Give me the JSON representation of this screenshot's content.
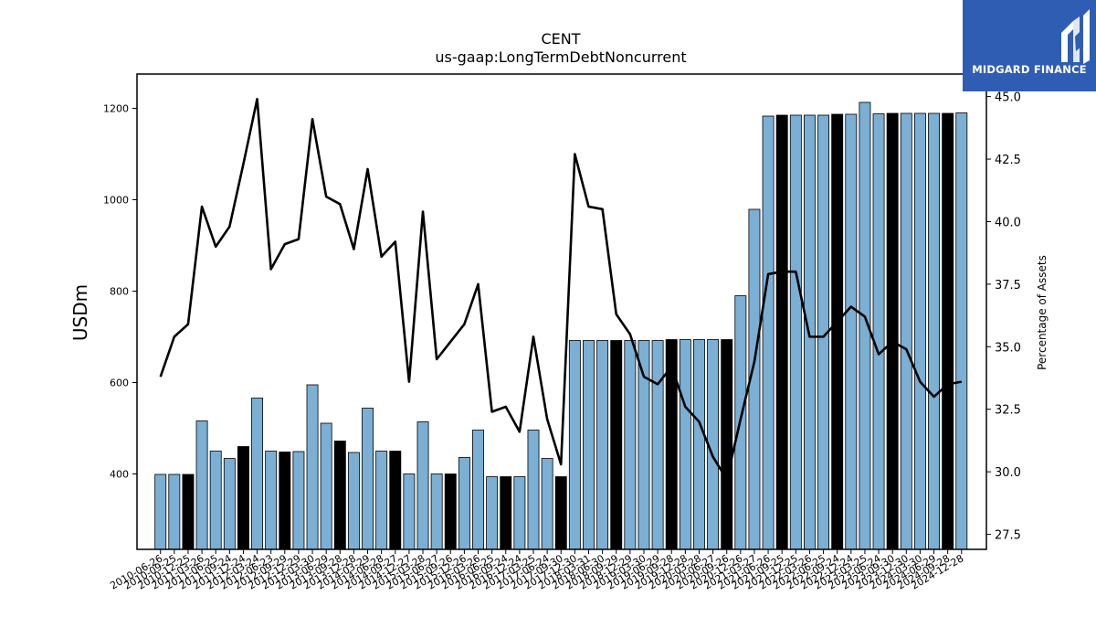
{
  "chart_data": {
    "type": "bar",
    "title": "CENT",
    "subtitle": "us-gaap:LongTermDebtNoncurrent",
    "ylabel": "USDm",
    "y2label": "Percentage of Assets",
    "ylim": [
      235,
      1275
    ],
    "y2lim": [
      26.9,
      45.9
    ],
    "yticks": [
      400,
      600,
      800,
      1000,
      1200
    ],
    "y2ticks": [
      "27.5",
      "30.0",
      "32.5",
      "35.0",
      "37.5",
      "40.0",
      "42.5",
      "45.0"
    ],
    "colors": {
      "quarter_bar": "#7bafd4",
      "annual_bar": "#000000",
      "bar_edge": "#000000",
      "line": "#000000"
    },
    "categories": [
      "2010-06-26",
      "2010-09-25",
      "2010-12-25",
      "2011-03-26",
      "2011-06-25",
      "2011-09-24",
      "2011-12-24",
      "2012-03-24",
      "2012-06-23",
      "2012-09-29",
      "2012-12-29",
      "2013-03-30",
      "2013-06-29",
      "2013-09-28",
      "2013-12-28",
      "2014-03-29",
      "2014-06-28",
      "2014-09-27",
      "2014-12-27",
      "2015-03-28",
      "2015-06-27",
      "2015-09-26",
      "2015-12-26",
      "2016-03-26",
      "2016-06-25",
      "2016-09-24",
      "2016-12-24",
      "2017-03-25",
      "2017-06-24",
      "2017-09-30",
      "2017-12-30",
      "2018-03-31",
      "2018-06-30",
      "2018-09-29",
      "2018-12-29",
      "2019-03-30",
      "2019-06-29",
      "2019-09-28",
      "2019-12-28",
      "2020-03-28",
      "2020-06-27",
      "2020-09-26",
      "2020-12-26",
      "2021-03-27",
      "2021-06-26",
      "2021-09-25",
      "2021-12-25",
      "2022-03-26",
      "2022-06-25",
      "2022-09-24",
      "2022-12-24",
      "2023-03-25",
      "2023-06-24",
      "2023-09-30",
      "2023-12-30",
      "2024-03-30",
      "2024-06-29",
      "2024-09-28",
      "2024-12-28"
    ],
    "series": [
      {
        "values": [
          399,
          399,
          399,
          516,
          450,
          434,
          460,
          566,
          450,
          448,
          449,
          595,
          511,
          472,
          447,
          544,
          450,
          450,
          400,
          514,
          400,
          400,
          436,
          496,
          394,
          394,
          394,
          496,
          434,
          394,
          692,
          692,
          692,
          692,
          692,
          692,
          692,
          694,
          694,
          694,
          694,
          694,
          790,
          979,
          1183,
          1185,
          1185,
          1185,
          1185,
          1187,
          1187,
          1213,
          1188,
          1189,
          1189,
          1189,
          1189,
          1189,
          1190
        ],
        "annual": [
          false,
          false,
          true,
          false,
          false,
          false,
          true,
          false,
          false,
          true,
          false,
          false,
          false,
          true,
          false,
          false,
          false,
          true,
          false,
          false,
          false,
          true,
          false,
          false,
          false,
          true,
          false,
          false,
          false,
          true,
          false,
          false,
          false,
          true,
          false,
          false,
          false,
          true,
          false,
          false,
          false,
          true,
          false,
          false,
          false,
          true,
          false,
          false,
          false,
          true,
          false,
          false,
          false,
          true,
          false,
          false,
          false,
          true,
          false
        ]
      },
      {
        "axis": "right",
        "values": [
          33.8,
          35.4,
          35.9,
          40.6,
          39.0,
          39.8,
          42.3,
          44.9,
          38.1,
          39.1,
          39.3,
          44.1,
          41.0,
          40.7,
          38.9,
          42.1,
          38.6,
          39.2,
          33.6,
          40.4,
          34.5,
          35.2,
          35.9,
          37.5,
          32.4,
          32.6,
          31.6,
          35.4,
          32.1,
          30.3,
          42.7,
          40.6,
          40.5,
          36.3,
          35.5,
          33.8,
          33.5,
          34.2,
          32.6,
          32.0,
          30.6,
          29.7,
          32.1,
          34.4,
          37.9,
          38.0,
          38.0,
          35.4,
          35.4,
          36.0,
          36.6,
          36.2,
          34.7,
          35.2,
          34.9,
          33.6,
          33.0,
          33.5,
          33.6
        ]
      }
    ]
  },
  "logo": {
    "text": "MIDGARD FINANCE",
    "name": "midgard-finance-logo"
  }
}
